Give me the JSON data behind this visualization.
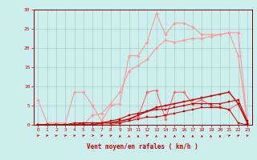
{
  "x": [
    0,
    1,
    2,
    3,
    4,
    5,
    6,
    7,
    8,
    9,
    10,
    11,
    12,
    13,
    14,
    15,
    16,
    17,
    18,
    19,
    20,
    21,
    22,
    23
  ],
  "series": [
    {
      "name": "line1_light",
      "color": "#FF9999",
      "linewidth": 0.8,
      "marker": "D",
      "markersize": 1.8,
      "y": [
        6.5,
        0.5,
        0.5,
        0.5,
        8.5,
        8.5,
        5.0,
        1.0,
        5.0,
        5.5,
        18.0,
        18.0,
        21.5,
        29.0,
        23.5,
        26.5,
        26.5,
        25.5,
        23.5,
        23.5,
        23.5,
        24.0,
        18.0,
        0.5
      ]
    },
    {
      "name": "line2_light",
      "color": "#FF9999",
      "linewidth": 0.8,
      "marker": "D",
      "markersize": 1.8,
      "y": [
        0.0,
        0.0,
        0.0,
        0.0,
        0.0,
        0.0,
        2.5,
        3.0,
        5.5,
        8.5,
        14.0,
        15.5,
        17.0,
        20.0,
        22.0,
        21.5,
        22.0,
        22.5,
        22.5,
        23.0,
        23.5,
        24.0,
        24.0,
        0.5
      ]
    },
    {
      "name": "line3_medium",
      "color": "#FF6666",
      "linewidth": 0.8,
      "marker": "D",
      "markersize": 1.8,
      "y": [
        0.0,
        0.0,
        0.0,
        0.0,
        0.0,
        0.0,
        0.0,
        0.0,
        0.0,
        0.5,
        1.5,
        2.0,
        8.5,
        9.0,
        1.5,
        8.5,
        8.5,
        5.5,
        6.5,
        5.0,
        4.5,
        4.0,
        5.5,
        0.5
      ]
    },
    {
      "name": "line4_dark",
      "color": "#CC0000",
      "linewidth": 0.8,
      "marker": "s",
      "markersize": 1.8,
      "y": [
        0.0,
        0.0,
        0.0,
        0.0,
        0.0,
        0.5,
        0.5,
        0.5,
        1.0,
        1.5,
        2.5,
        3.0,
        3.5,
        4.0,
        4.0,
        4.5,
        5.0,
        5.5,
        5.5,
        5.5,
        5.5,
        6.0,
        6.5,
        1.0
      ]
    },
    {
      "name": "line5_dark",
      "color": "#CC0000",
      "linewidth": 1.0,
      "marker": "s",
      "markersize": 1.8,
      "y": [
        0.0,
        0.0,
        0.0,
        0.0,
        0.0,
        0.0,
        0.0,
        0.5,
        0.5,
        1.0,
        1.5,
        2.5,
        3.5,
        4.5,
        5.0,
        5.5,
        6.0,
        6.5,
        7.0,
        7.5,
        8.0,
        8.5,
        5.5,
        0.5
      ]
    },
    {
      "name": "line6_dark",
      "color": "#CC0000",
      "linewidth": 0.7,
      "marker": "s",
      "markersize": 1.8,
      "y": [
        0.0,
        0.0,
        0.0,
        0.0,
        0.5,
        0.5,
        0.5,
        0.5,
        0.5,
        0.5,
        1.0,
        1.5,
        2.0,
        2.0,
        2.5,
        3.0,
        3.5,
        4.0,
        4.5,
        4.5,
        4.5,
        4.0,
        0.5,
        0.0
      ]
    }
  ],
  "wind_arrows": [
    45,
    45,
    45,
    45,
    45,
    45,
    90,
    45,
    45,
    0,
    0,
    0,
    45,
    0,
    0,
    0,
    0,
    0,
    0,
    0,
    0,
    45,
    45,
    45
  ],
  "xlabel": "Vent moyen/en rafales ( km/h )",
  "xlim": [
    -0.5,
    23.5
  ],
  "ylim": [
    0,
    30
  ],
  "yticks": [
    0,
    5,
    10,
    15,
    20,
    25,
    30
  ],
  "xticks": [
    0,
    1,
    2,
    3,
    4,
    5,
    6,
    7,
    8,
    9,
    10,
    11,
    12,
    13,
    14,
    15,
    16,
    17,
    18,
    19,
    20,
    21,
    22,
    23
  ],
  "bg_color": "#CCEEED",
  "grid_color": "#AACCCC",
  "axis_color": "#880000",
  "text_color": "#CC0000",
  "arrow_color": "#CC0000"
}
